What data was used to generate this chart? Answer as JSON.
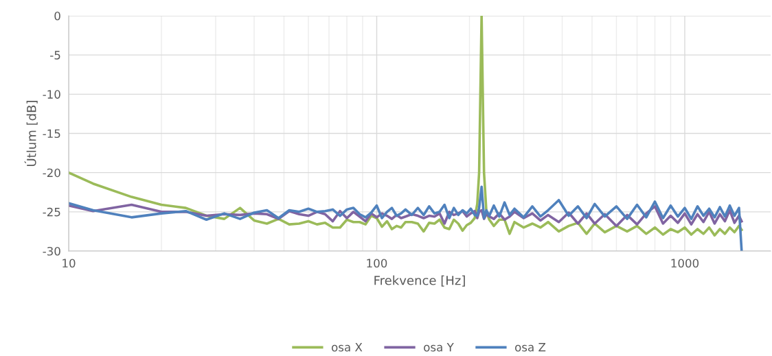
{
  "chart_data": {
    "type": "line",
    "xlabel": "Frekvence [Hz]",
    "ylabel": "Útlum [dB]",
    "log": "x",
    "grid": true,
    "legend": "bottom",
    "marker": "none",
    "line_style": "solid",
    "xlim": [
      10,
      1900
    ],
    "xticks": [
      10,
      100,
      1000
    ],
    "ylim": [
      -30,
      0
    ],
    "yticks": [
      -30,
      -25,
      -20,
      -15,
      -10,
      -5,
      0
    ],
    "x": [
      10,
      12,
      16,
      20,
      24,
      28,
      32,
      36,
      40,
      44,
      48,
      52,
      56,
      60,
      64,
      68,
      72,
      76,
      80,
      84,
      88,
      92,
      96,
      100,
      104,
      108,
      112,
      116,
      120,
      124,
      130,
      136,
      142,
      148,
      154,
      160,
      166,
      172,
      178,
      184,
      190,
      196,
      202,
      208,
      212,
      215,
      219,
      223,
      227,
      232,
      240,
      250,
      260,
      270,
      280,
      300,
      320,
      340,
      360,
      390,
      420,
      450,
      480,
      510,
      550,
      600,
      650,
      700,
      750,
      800,
      850,
      900,
      950,
      1000,
      1050,
      1100,
      1150,
      1200,
      1250,
      1300,
      1350,
      1400,
      1450,
      1500,
      1530
    ],
    "series": [
      {
        "name": "osa X",
        "color": "#9bbb59",
        "values": [
          -20,
          -21.4,
          -23.1,
          -24.1,
          -24.5,
          -25.5,
          -25.9,
          -24.5,
          -26.1,
          -26.5,
          -25.9,
          -26.6,
          -26.5,
          -26.2,
          -26.6,
          -26.4,
          -27,
          -27,
          -26,
          -26.3,
          -26.3,
          -26.6,
          -25.5,
          -25.8,
          -26.9,
          -26.2,
          -27.2,
          -26.8,
          -27,
          -26.3,
          -26.3,
          -26.5,
          -27.5,
          -26.4,
          -26.5,
          -26,
          -27,
          -27.2,
          -26,
          -26.5,
          -27.4,
          -26.7,
          -26.4,
          -25.8,
          -24,
          -20,
          0,
          -20,
          -25,
          -26,
          -26.8,
          -26,
          -26,
          -27.8,
          -26.3,
          -27,
          -26.5,
          -27,
          -26.3,
          -27.5,
          -26.8,
          -26.4,
          -27.8,
          -26.5,
          -27.6,
          -26.8,
          -27.5,
          -26.8,
          -27.8,
          -27,
          -27.9,
          -27.2,
          -27.6,
          -27,
          -27.9,
          -27.2,
          -27.8,
          -27,
          -28,
          -27.2,
          -27.8,
          -27,
          -27.6,
          -26.8,
          -27.3
        ]
      },
      {
        "name": "osa Y",
        "color": "#8064a2",
        "values": [
          -24.2,
          -24.9,
          -24.1,
          -25,
          -25,
          -25.5,
          -25.3,
          -25.4,
          -25.2,
          -25.3,
          -25.9,
          -24.9,
          -25.3,
          -25.5,
          -25,
          -25.3,
          -26.2,
          -24.9,
          -25.8,
          -25,
          -25.6,
          -26.2,
          -25.2,
          -25.7,
          -25.2,
          -25.5,
          -25.9,
          -25.4,
          -25.8,
          -25.6,
          -25.3,
          -25.5,
          -25.8,
          -25.5,
          -25.6,
          -25.2,
          -26.5,
          -25,
          -25.4,
          -25.2,
          -24.9,
          -25.6,
          -25.2,
          -24.9,
          -25.8,
          -25,
          -24.8,
          -25.9,
          -25.3,
          -25.6,
          -25.9,
          -25.2,
          -26,
          -25.6,
          -25,
          -25.8,
          -25.2,
          -26.1,
          -25.4,
          -26.3,
          -25.1,
          -26.5,
          -25.2,
          -26.5,
          -25.3,
          -26.8,
          -25.4,
          -26.6,
          -25.2,
          -24.3,
          -26.5,
          -25.5,
          -26.4,
          -25.2,
          -26.6,
          -25.3,
          -26.3,
          -25,
          -26.5,
          -25.3,
          -26.2,
          -24.8,
          -26.4,
          -25.5,
          -26.2
        ]
      },
      {
        "name": "osa Z",
        "color": "#4f81bd",
        "values": [
          -23.9,
          -24.8,
          -25.7,
          -25.2,
          -24.9,
          -26,
          -25.2,
          -25.9,
          -25.1,
          -24.8,
          -25.8,
          -24.8,
          -25,
          -24.6,
          -25,
          -24.9,
          -24.7,
          -25.5,
          -24.7,
          -24.5,
          -25.3,
          -25.7,
          -25.1,
          -24.2,
          -25.8,
          -25,
          -24.5,
          -25.5,
          -25.2,
          -24.7,
          -25.4,
          -24.5,
          -25.4,
          -24.3,
          -25.2,
          -25,
          -24.1,
          -25.8,
          -24.5,
          -25.4,
          -24.8,
          -25.2,
          -24.6,
          -25.4,
          -25.5,
          -24.5,
          -21.8,
          -25.8,
          -24.8,
          -25.5,
          -24.2,
          -25.6,
          -23.8,
          -25.4,
          -24.6,
          -25.7,
          -24.3,
          -25.6,
          -24.8,
          -23.5,
          -25.5,
          -24.3,
          -25.8,
          -24,
          -25.6,
          -24.3,
          -25.9,
          -24.1,
          -25.7,
          -23.7,
          -25.8,
          -24.2,
          -25.6,
          -24.5,
          -25.9,
          -24.3,
          -25.5,
          -24.6,
          -25.7,
          -24.4,
          -25.6,
          -24.2,
          -25.5,
          -24.5,
          -30
        ]
      }
    ]
  }
}
